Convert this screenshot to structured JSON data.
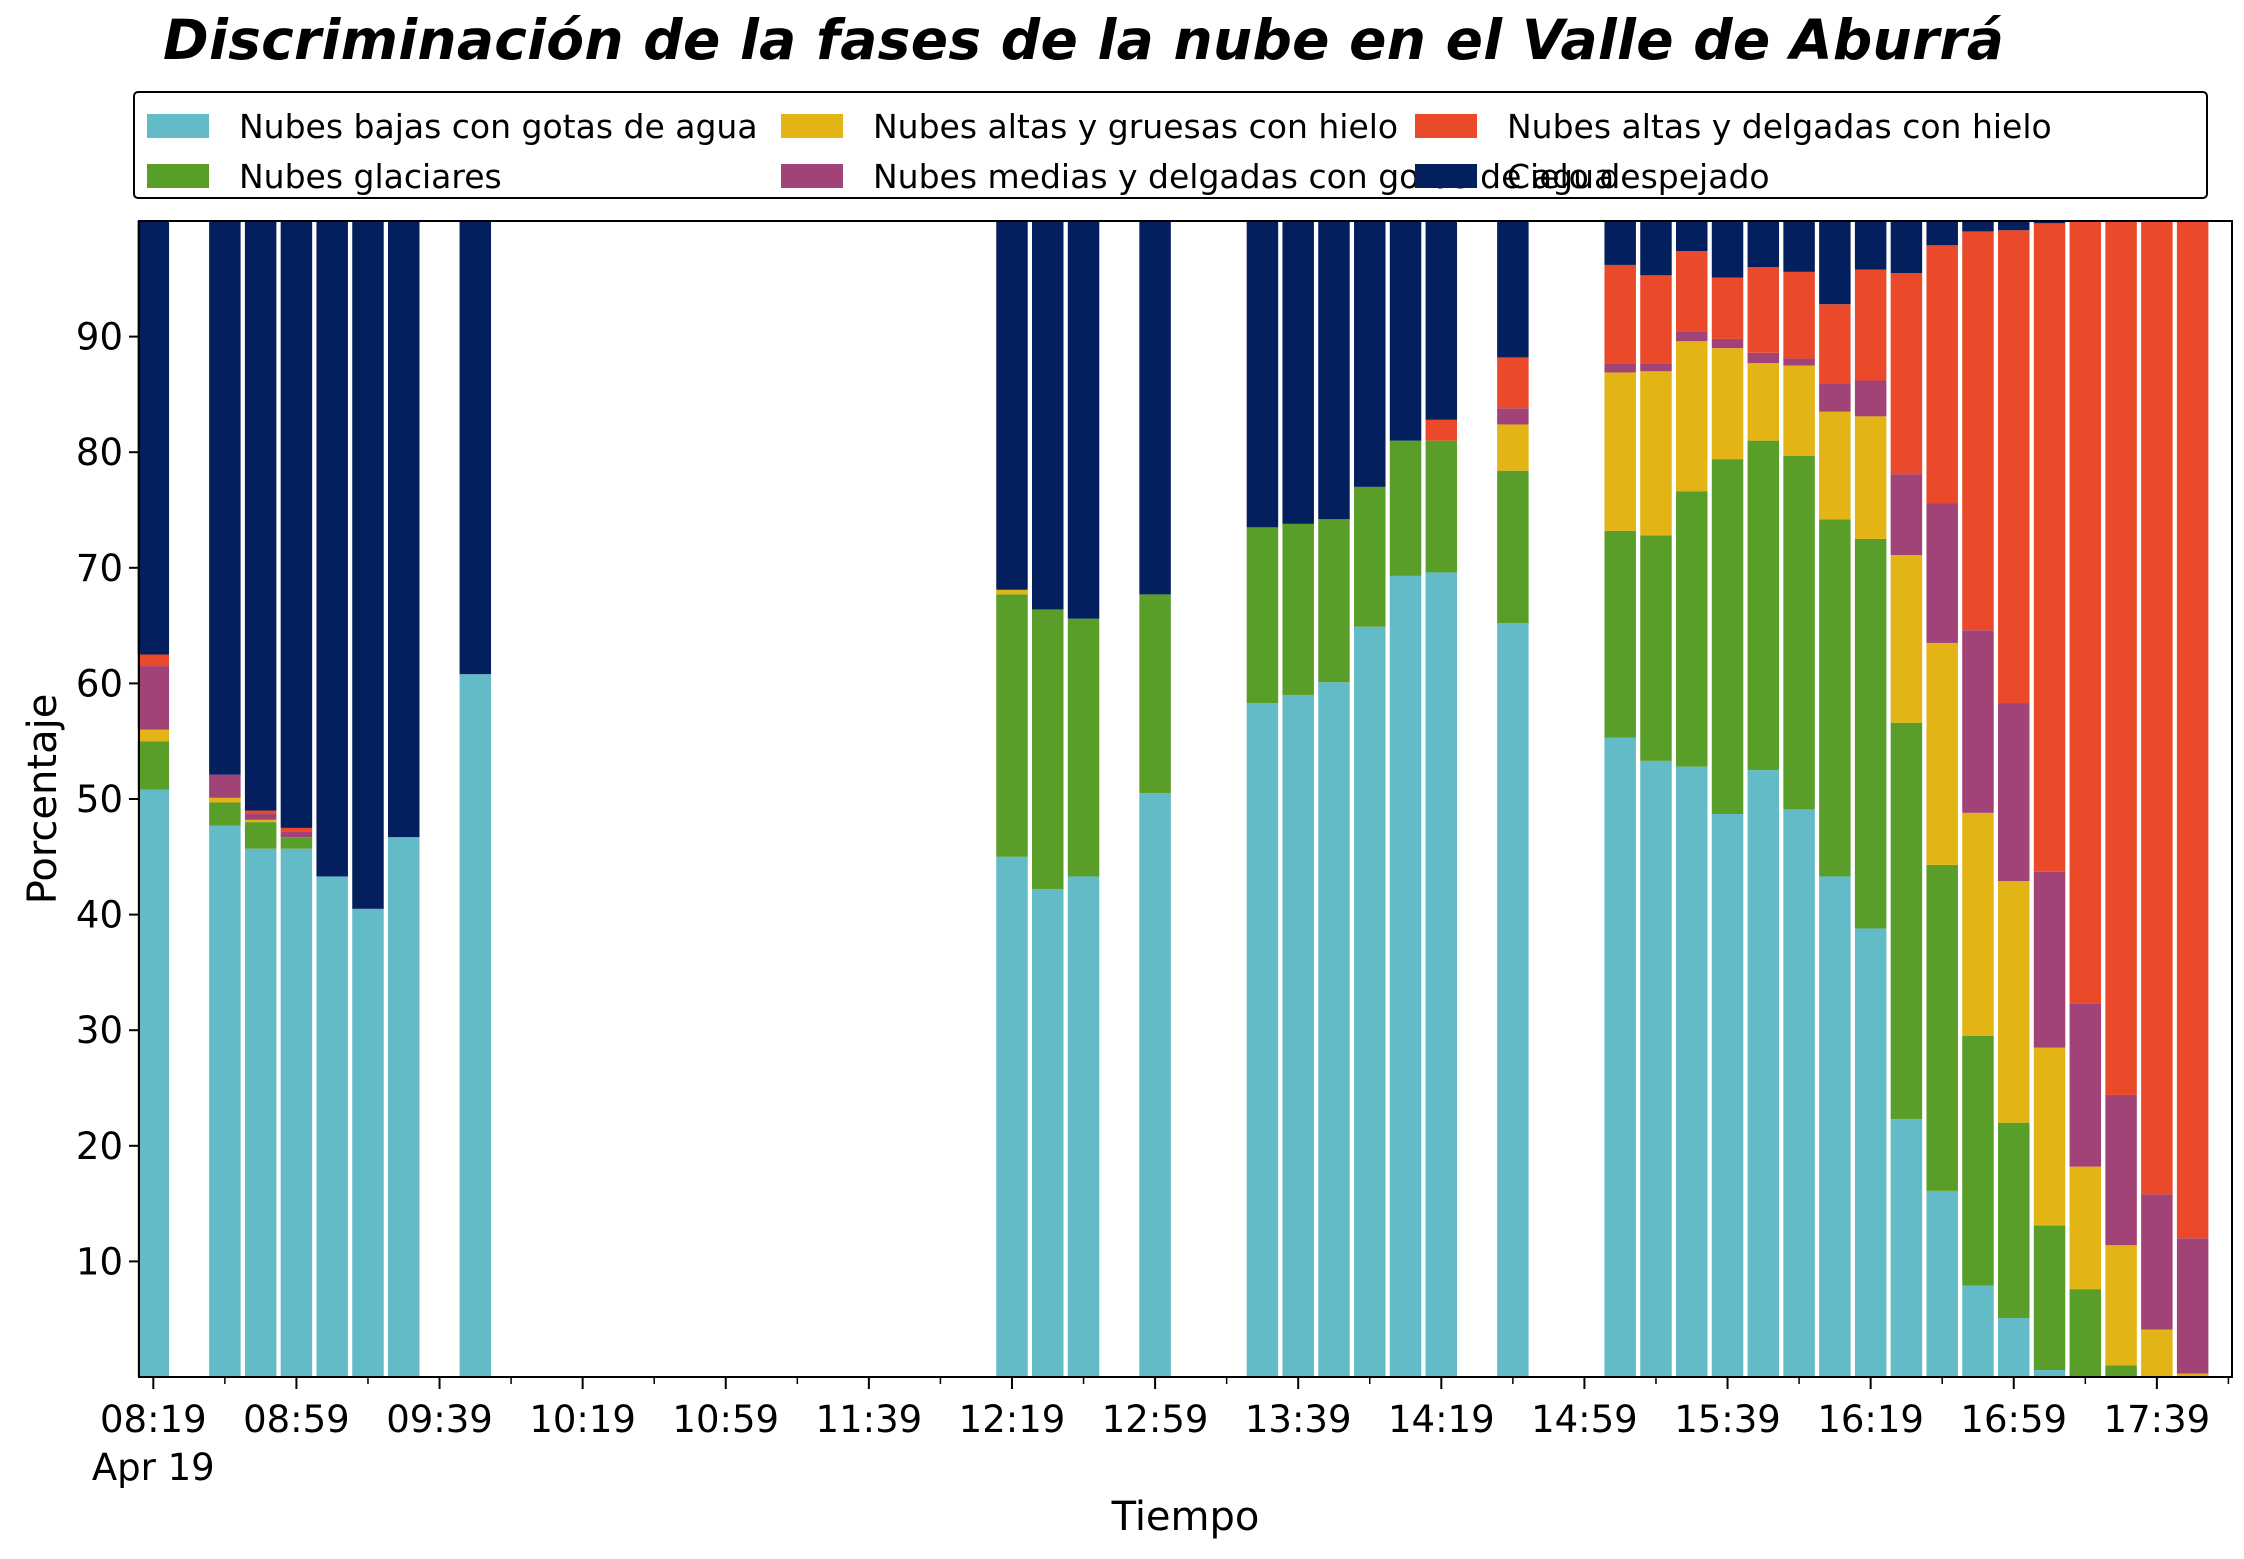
{
  "title": "Discriminación de la fases de la nube en el Valle de Aburrá",
  "legend": [
    {
      "label": "Nubes bajas con gotas de agua",
      "color": "#63bbc7"
    },
    {
      "label": "Nubes glaciares",
      "color": "#5a9e2a"
    },
    {
      "label": "Nubes altas y gruesas con hielo",
      "color": "#e3b415"
    },
    {
      "label": "Nubes medias y delgadas con gotas de agua",
      "color": "#a24377"
    },
    {
      "label": "Nubes altas y delgadas con hielo",
      "color": "#ea4a2a"
    },
    {
      "label": "Cielo despejado",
      "color": "#041f5d"
    }
  ],
  "chart_data": {
    "type": "bar",
    "stacked": true,
    "title": "Discriminación de la fases de la nube en el Valle de Aburrá",
    "xlabel": "Tiempo",
    "ylabel": "Porcentaje",
    "ylim": [
      0,
      100
    ],
    "yticks": [
      10,
      20,
      30,
      40,
      50,
      60,
      70,
      80,
      90
    ],
    "xlim_minutes": [
      "08:15",
      "18:00"
    ],
    "xtick_labels": [
      "08:19",
      "08:59",
      "09:39",
      "10:19",
      "10:59",
      "11:39",
      "12:19",
      "12:59",
      "13:39",
      "14:19",
      "14:59",
      "15:39",
      "16:19",
      "16:59",
      "17:39"
    ],
    "xtick_sublabel": "Apr 19",
    "series_colors": [
      "#63bbc7",
      "#5a9e2a",
      "#e3b415",
      "#a24377",
      "#ea4a2a",
      "#041f5d"
    ],
    "bars": [
      {
        "time": "08:19",
        "values": [
          50.8,
          4.2,
          1.0,
          5.5,
          1.0,
          37.5
        ]
      },
      {
        "time": "08:39",
        "values": [
          47.7,
          2.0,
          0.4,
          2.0,
          0.0,
          47.9
        ]
      },
      {
        "time": "08:49",
        "values": [
          45.7,
          2.3,
          0.2,
          0.5,
          0.3,
          51.0
        ]
      },
      {
        "time": "08:59",
        "values": [
          45.7,
          1.0,
          0.0,
          0.5,
          0.3,
          52.5
        ]
      },
      {
        "time": "09:09",
        "values": [
          43.3,
          0.0,
          0.0,
          0.0,
          0.0,
          56.7
        ]
      },
      {
        "time": "09:19",
        "values": [
          40.5,
          0.0,
          0.0,
          0.0,
          0.0,
          59.5
        ]
      },
      {
        "time": "09:29",
        "values": [
          46.7,
          0.0,
          0.0,
          0.0,
          0.0,
          53.3
        ]
      },
      {
        "time": "09:49",
        "values": [
          60.8,
          0.0,
          0.0,
          0.0,
          0.0,
          39.2
        ]
      },
      {
        "time": "12:19",
        "values": [
          45.0,
          22.7,
          0.4,
          0.0,
          0.0,
          31.9
        ]
      },
      {
        "time": "12:29",
        "values": [
          42.2,
          24.2,
          0.0,
          0.0,
          0.0,
          33.6
        ]
      },
      {
        "time": "12:39",
        "values": [
          43.3,
          22.3,
          0.0,
          0.0,
          0.0,
          34.4
        ]
      },
      {
        "time": "12:59",
        "values": [
          50.5,
          17.2,
          0.0,
          0.0,
          0.0,
          32.3
        ]
      },
      {
        "time": "13:29",
        "values": [
          58.3,
          15.2,
          0.0,
          0.0,
          0.0,
          26.5
        ]
      },
      {
        "time": "13:39",
        "values": [
          59.0,
          14.8,
          0.0,
          0.0,
          0.0,
          26.2
        ]
      },
      {
        "time": "13:49",
        "values": [
          60.1,
          14.1,
          0.0,
          0.0,
          0.0,
          25.8
        ]
      },
      {
        "time": "13:59",
        "values": [
          64.9,
          12.1,
          0.0,
          0.0,
          0.0,
          23.0
        ]
      },
      {
        "time": "14:09",
        "values": [
          69.3,
          11.7,
          0.0,
          0.0,
          0.0,
          19.0
        ]
      },
      {
        "time": "14:19",
        "values": [
          69.6,
          11.4,
          0.0,
          0.0,
          1.8,
          17.2
        ]
      },
      {
        "time": "14:39",
        "values": [
          65.2,
          13.2,
          4.0,
          1.4,
          4.4,
          11.8
        ]
      },
      {
        "time": "15:09",
        "values": [
          55.3,
          17.9,
          13.7,
          0.8,
          8.5,
          3.8
        ]
      },
      {
        "time": "15:19",
        "values": [
          53.3,
          19.5,
          14.2,
          0.7,
          7.6,
          4.7
        ]
      },
      {
        "time": "15:29",
        "values": [
          52.8,
          23.8,
          13.0,
          0.8,
          7.0,
          2.6
        ]
      },
      {
        "time": "15:39",
        "values": [
          48.7,
          30.7,
          9.6,
          0.8,
          5.3,
          4.9
        ]
      },
      {
        "time": "15:49",
        "values": [
          52.5,
          28.5,
          6.7,
          0.9,
          7.4,
          4.0
        ]
      },
      {
        "time": "15:59",
        "values": [
          49.1,
          30.6,
          7.8,
          0.6,
          7.5,
          4.4
        ]
      },
      {
        "time": "16:09",
        "values": [
          43.3,
          30.9,
          9.3,
          2.4,
          6.9,
          7.2
        ]
      },
      {
        "time": "16:19",
        "values": [
          38.8,
          33.7,
          10.6,
          3.1,
          9.6,
          4.2
        ]
      },
      {
        "time": "16:29",
        "values": [
          22.3,
          34.3,
          14.5,
          7.0,
          17.4,
          4.5
        ]
      },
      {
        "time": "16:39",
        "values": [
          16.1,
          28.2,
          19.2,
          12.1,
          22.3,
          2.1
        ]
      },
      {
        "time": "16:49",
        "values": [
          7.9,
          21.6,
          19.3,
          15.8,
          34.5,
          0.9
        ]
      },
      {
        "time": "16:59",
        "values": [
          5.1,
          16.9,
          20.9,
          15.4,
          40.9,
          0.8
        ]
      },
      {
        "time": "17:09",
        "values": [
          0.6,
          12.5,
          15.4,
          15.2,
          56.1,
          0.2
        ]
      },
      {
        "time": "17:19",
        "values": [
          0.0,
          7.6,
          10.6,
          14.1,
          67.7,
          0.0
        ]
      },
      {
        "time": "17:29",
        "values": [
          0.0,
          1.0,
          10.4,
          13.0,
          75.6,
          0.0
        ]
      },
      {
        "time": "17:39",
        "values": [
          0.0,
          0.0,
          4.1,
          11.7,
          84.2,
          0.0
        ]
      },
      {
        "time": "17:49",
        "values": [
          0.0,
          0.0,
          0.3,
          11.7,
          88.0,
          0.0
        ]
      }
    ]
  }
}
